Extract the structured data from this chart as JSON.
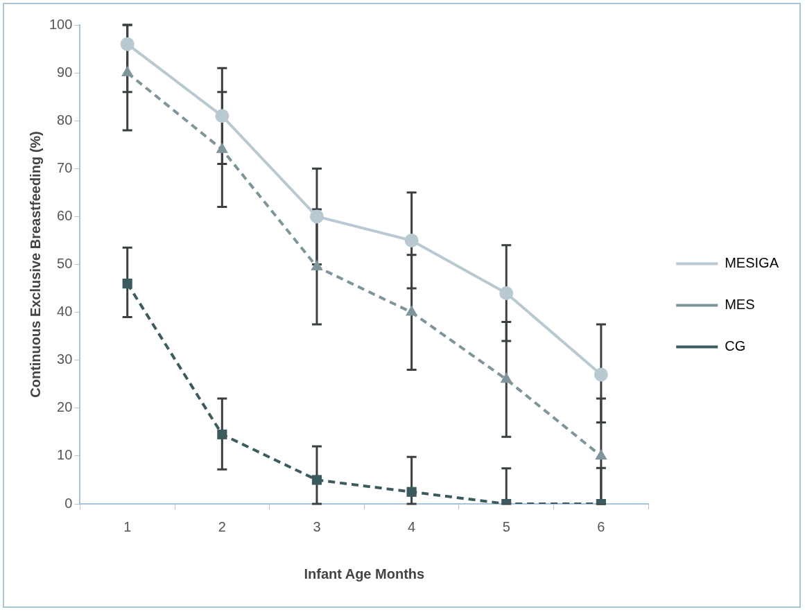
{
  "chart_data": {
    "type": "line",
    "xlabel": "Infant Age Months",
    "ylabel": "Continuous Exclusive Breastfeeding (%)",
    "categories": [
      "1",
      "2",
      "3",
      "4",
      "5",
      "6"
    ],
    "ylim": [
      0,
      100
    ],
    "yticks": [
      0,
      10,
      20,
      30,
      40,
      50,
      60,
      70,
      80,
      90,
      100
    ],
    "grid": false,
    "legend": "right",
    "series": [
      {
        "name": "MESIGA",
        "color": "#b8c9d1",
        "marker": "circle",
        "line_style": "solid",
        "values": [
          96,
          81,
          60,
          55,
          44,
          27
        ],
        "errors": [
          [
            86,
            100
          ],
          [
            71,
            91
          ],
          [
            50,
            70
          ],
          [
            45,
            65
          ],
          [
            34,
            54
          ],
          [
            17,
            37.5
          ]
        ]
      },
      {
        "name": "MES",
        "color": "#7e959c",
        "marker": "triangle",
        "line_style": "dashed",
        "values": [
          90,
          74,
          49.5,
          40,
          26,
          10
        ],
        "errors": [
          [
            78,
            100
          ],
          [
            62,
            86
          ],
          [
            37.5,
            61.5
          ],
          [
            28,
            52
          ],
          [
            14,
            38
          ],
          [
            0,
            22
          ]
        ]
      },
      {
        "name": "CG",
        "color": "#3c5b5f",
        "marker": "square",
        "line_style": "dashed",
        "values": [
          46,
          14.5,
          5,
          2.5,
          0,
          0
        ],
        "errors": [
          [
            39,
            53.5
          ],
          [
            7.2,
            22
          ],
          [
            0,
            12
          ],
          [
            0,
            9.8
          ],
          [
            0,
            7.4
          ],
          [
            0,
            7.5
          ]
        ]
      }
    ]
  }
}
